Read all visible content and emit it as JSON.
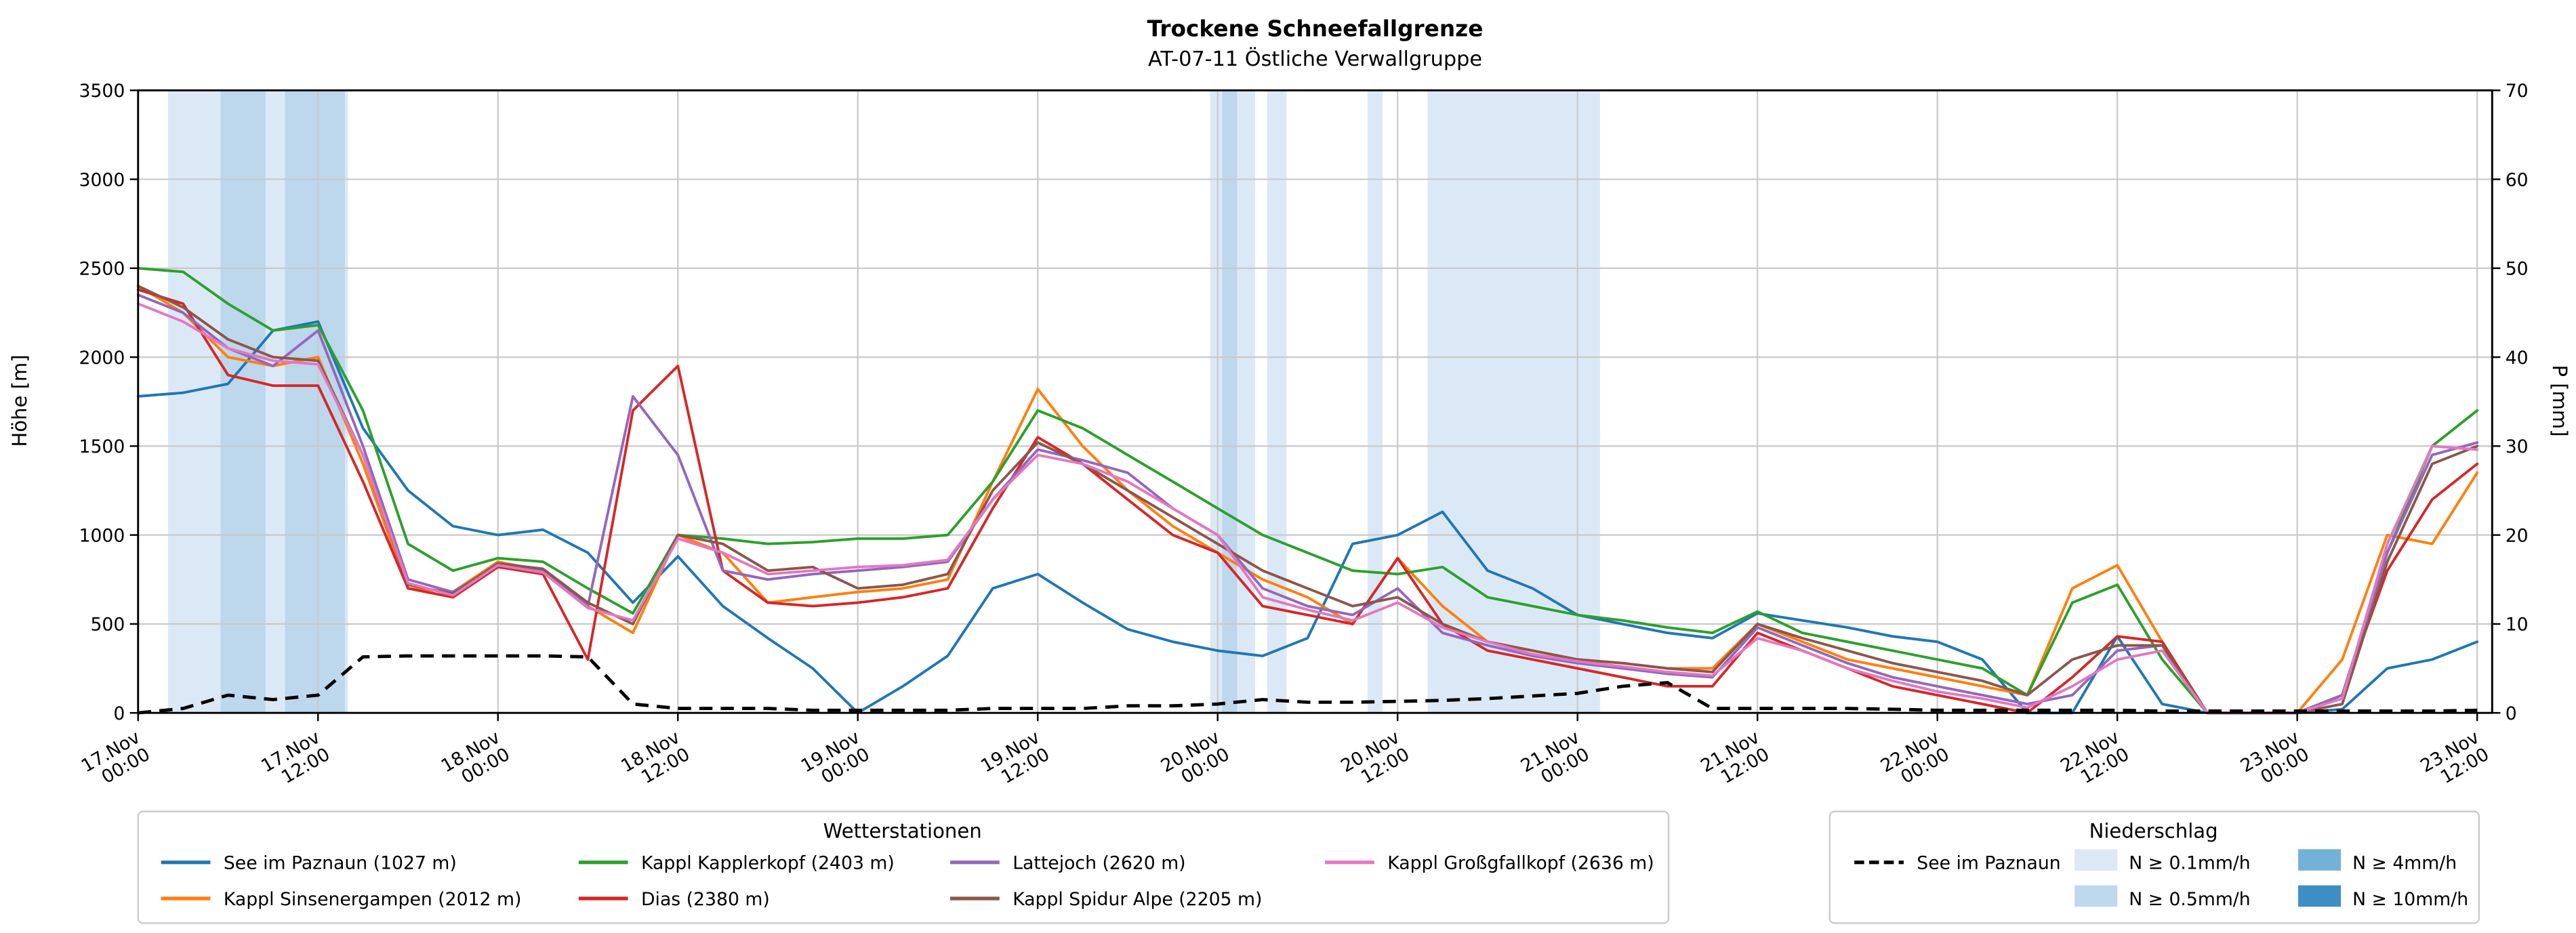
{
  "chart_data": {
    "type": "line",
    "title": "Trockene Schneefallgrenze",
    "subtitle": "AT-07-11 Östliche Verwallgruppe",
    "ylabel_left": "Höhe [m]",
    "ylabel_right": "P [mm]",
    "ylim_left": [
      0,
      3500
    ],
    "yticks_left": [
      0,
      500,
      1000,
      1500,
      2000,
      2500,
      3000,
      3500
    ],
    "ylim_right": [
      0,
      70
    ],
    "yticks_right": [
      0,
      10,
      20,
      30,
      40,
      50,
      60,
      70
    ],
    "xlim_hours": [
      0,
      157
    ],
    "grid": true,
    "sample_hours_step": 3,
    "x_ticks": [
      {
        "h": 0,
        "date": "17.Nov",
        "time": "00:00"
      },
      {
        "h": 12,
        "date": "17.Nov",
        "time": "12:00"
      },
      {
        "h": 24,
        "date": "18.Nov",
        "time": "00:00"
      },
      {
        "h": 36,
        "date": "18.Nov",
        "time": "12:00"
      },
      {
        "h": 48,
        "date": "19.Nov",
        "time": "00:00"
      },
      {
        "h": 60,
        "date": "19.Nov",
        "time": "12:00"
      },
      {
        "h": 72,
        "date": "20.Nov",
        "time": "00:00"
      },
      {
        "h": 84,
        "date": "20.Nov",
        "time": "12:00"
      },
      {
        "h": 96,
        "date": "21.Nov",
        "time": "00:00"
      },
      {
        "h": 108,
        "date": "21.Nov",
        "time": "12:00"
      },
      {
        "h": 120,
        "date": "22.Nov",
        "time": "00:00"
      },
      {
        "h": 132,
        "date": "22.Nov",
        "time": "12:00"
      },
      {
        "h": 144,
        "date": "23.Nov",
        "time": "00:00"
      },
      {
        "h": 156,
        "date": "23.Nov",
        "time": "12:00"
      }
    ],
    "series": [
      {
        "name": "See im Paznaun (1027 m)",
        "color": "#1f77b4",
        "values": [
          1780,
          1800,
          1850,
          2150,
          2200,
          1600,
          1250,
          1050,
          1000,
          1030,
          900,
          620,
          880,
          600,
          420,
          250,
          0,
          150,
          320,
          700,
          780,
          620,
          470,
          400,
          350,
          320,
          420,
          950,
          1000,
          1130,
          800,
          700,
          550,
          500,
          450,
          420,
          560,
          520,
          480,
          430,
          400,
          300,
          0,
          0,
          430,
          50,
          0,
          0,
          0,
          20,
          250,
          300,
          400
        ]
      },
      {
        "name": "Kappl Sinsenergampen (2012 m)",
        "color": "#ff7f0e",
        "values": [
          2400,
          2250,
          2000,
          1950,
          2000,
          1400,
          700,
          680,
          850,
          800,
          600,
          450,
          1000,
          900,
          620,
          650,
          680,
          700,
          750,
          1300,
          1820,
          1500,
          1250,
          1050,
          900,
          750,
          650,
          500,
          870,
          600,
          400,
          350,
          300,
          280,
          250,
          250,
          500,
          400,
          300,
          250,
          200,
          150,
          100,
          700,
          830,
          400,
          0,
          0,
          0,
          300,
          1000,
          950,
          1350
        ]
      },
      {
        "name": "Kappl Kapplerkopf (2403 m)",
        "color": "#2ca02c",
        "values": [
          2500,
          2480,
          2300,
          2150,
          2180,
          1700,
          950,
          800,
          870,
          850,
          700,
          560,
          1000,
          980,
          950,
          960,
          980,
          980,
          1000,
          1300,
          1700,
          1600,
          1450,
          1300,
          1150,
          1000,
          900,
          800,
          780,
          820,
          650,
          600,
          550,
          520,
          480,
          450,
          570,
          450,
          400,
          350,
          300,
          250,
          100,
          620,
          720,
          300,
          0,
          0,
          0,
          100,
          900,
          1500,
          1700
        ]
      },
      {
        "name": "Dias (2380 m)",
        "color": "#d62728",
        "values": [
          2380,
          2300,
          1900,
          1840,
          1840,
          1300,
          700,
          650,
          820,
          780,
          300,
          1700,
          1950,
          800,
          620,
          600,
          620,
          650,
          700,
          1150,
          1550,
          1400,
          1200,
          1000,
          900,
          600,
          550,
          500,
          870,
          500,
          350,
          300,
          250,
          200,
          150,
          150,
          450,
          350,
          250,
          150,
          100,
          50,
          0,
          200,
          430,
          400,
          0,
          0,
          0,
          100,
          800,
          1200,
          1400
        ]
      },
      {
        "name": "Lattejoch (2620 m)",
        "color": "#9467bd",
        "values": [
          2350,
          2250,
          2050,
          1950,
          2150,
          1500,
          750,
          680,
          830,
          800,
          600,
          1780,
          1450,
          800,
          750,
          780,
          800,
          820,
          850,
          1200,
          1480,
          1420,
          1350,
          1150,
          1000,
          700,
          600,
          550,
          700,
          450,
          380,
          320,
          280,
          250,
          220,
          200,
          480,
          380,
          280,
          200,
          150,
          100,
          50,
          100,
          350,
          380,
          0,
          0,
          0,
          100,
          900,
          1450,
          1520
        ]
      },
      {
        "name": "Kappl Spidur Alpe (2205 m)",
        "color": "#8c564b",
        "values": [
          2400,
          2280,
          2100,
          2000,
          1980,
          1450,
          720,
          670,
          840,
          810,
          620,
          500,
          1000,
          950,
          800,
          820,
          700,
          720,
          780,
          1250,
          1520,
          1400,
          1250,
          1100,
          950,
          800,
          700,
          600,
          650,
          500,
          400,
          350,
          300,
          280,
          250,
          230,
          500,
          420,
          350,
          280,
          230,
          180,
          100,
          300,
          380,
          380,
          0,
          0,
          0,
          50,
          850,
          1400,
          1500
        ]
      },
      {
        "name": "Kappl Großgfallkopf (2636 m)",
        "color": "#e377c2",
        "values": [
          2300,
          2200,
          2050,
          1980,
          1960,
          1450,
          730,
          660,
          830,
          790,
          590,
          520,
          980,
          900,
          780,
          800,
          820,
          830,
          860,
          1200,
          1450,
          1400,
          1300,
          1150,
          1000,
          650,
          580,
          520,
          620,
          480,
          400,
          330,
          290,
          260,
          230,
          210,
          420,
          350,
          250,
          180,
          120,
          80,
          30,
          150,
          300,
          350,
          0,
          0,
          0,
          80,
          950,
          1500,
          1480
        ]
      }
    ],
    "precip_line": {
      "name": "See im Paznaun",
      "color": "#000000",
      "style": "dashed",
      "axis": "right",
      "values": [
        0,
        0.5,
        2,
        1.5,
        2,
        6.3,
        6.4,
        6.4,
        6.4,
        6.4,
        6.3,
        1,
        0.5,
        0.5,
        0.5,
        0.3,
        0.3,
        0.3,
        0.3,
        0.5,
        0.5,
        0.5,
        0.8,
        0.8,
        1.0,
        1.5,
        1.2,
        1.2,
        1.3,
        1.4,
        1.6,
        1.9,
        2.2,
        3.0,
        3.4,
        0.5,
        0.5,
        0.5,
        0.5,
        0.4,
        0.3,
        0.3,
        0.3,
        0.3,
        0.3,
        0.2,
        0.2,
        0.2,
        0.2,
        0.2,
        0.2,
        0.2,
        0.3
      ]
    },
    "precip_bands": [
      {
        "start_h": 2,
        "end_h": 14,
        "level": "0.1"
      },
      {
        "start_h": 5.5,
        "end_h": 8.5,
        "level": "0.5"
      },
      {
        "start_h": 9.8,
        "end_h": 13.8,
        "level": "0.5"
      },
      {
        "start_h": 71.5,
        "end_h": 74.5,
        "level": "0.1"
      },
      {
        "start_h": 72.3,
        "end_h": 73.3,
        "level": "0.5"
      },
      {
        "start_h": 75.3,
        "end_h": 76.6,
        "level": "0.1"
      },
      {
        "start_h": 82,
        "end_h": 83,
        "level": "0.1"
      },
      {
        "start_h": 86,
        "end_h": 97.5,
        "level": "0.1"
      }
    ],
    "band_levels": [
      {
        "key": "0.1",
        "label": "N ≥ 0.1mm/h",
        "color": "#dbe9f6"
      },
      {
        "key": "0.5",
        "label": "N ≥ 0.5mm/h",
        "color": "#bdd7ec"
      },
      {
        "key": "4",
        "label": "N ≥ 4mm/h",
        "color": "#73b2d8"
      },
      {
        "key": "10",
        "label": "N ≥ 10mm/h",
        "color": "#3d8ec4"
      }
    ],
    "legend": {
      "stations_title": "Wetterstationen",
      "precip_title": "Niederschlag"
    }
  }
}
